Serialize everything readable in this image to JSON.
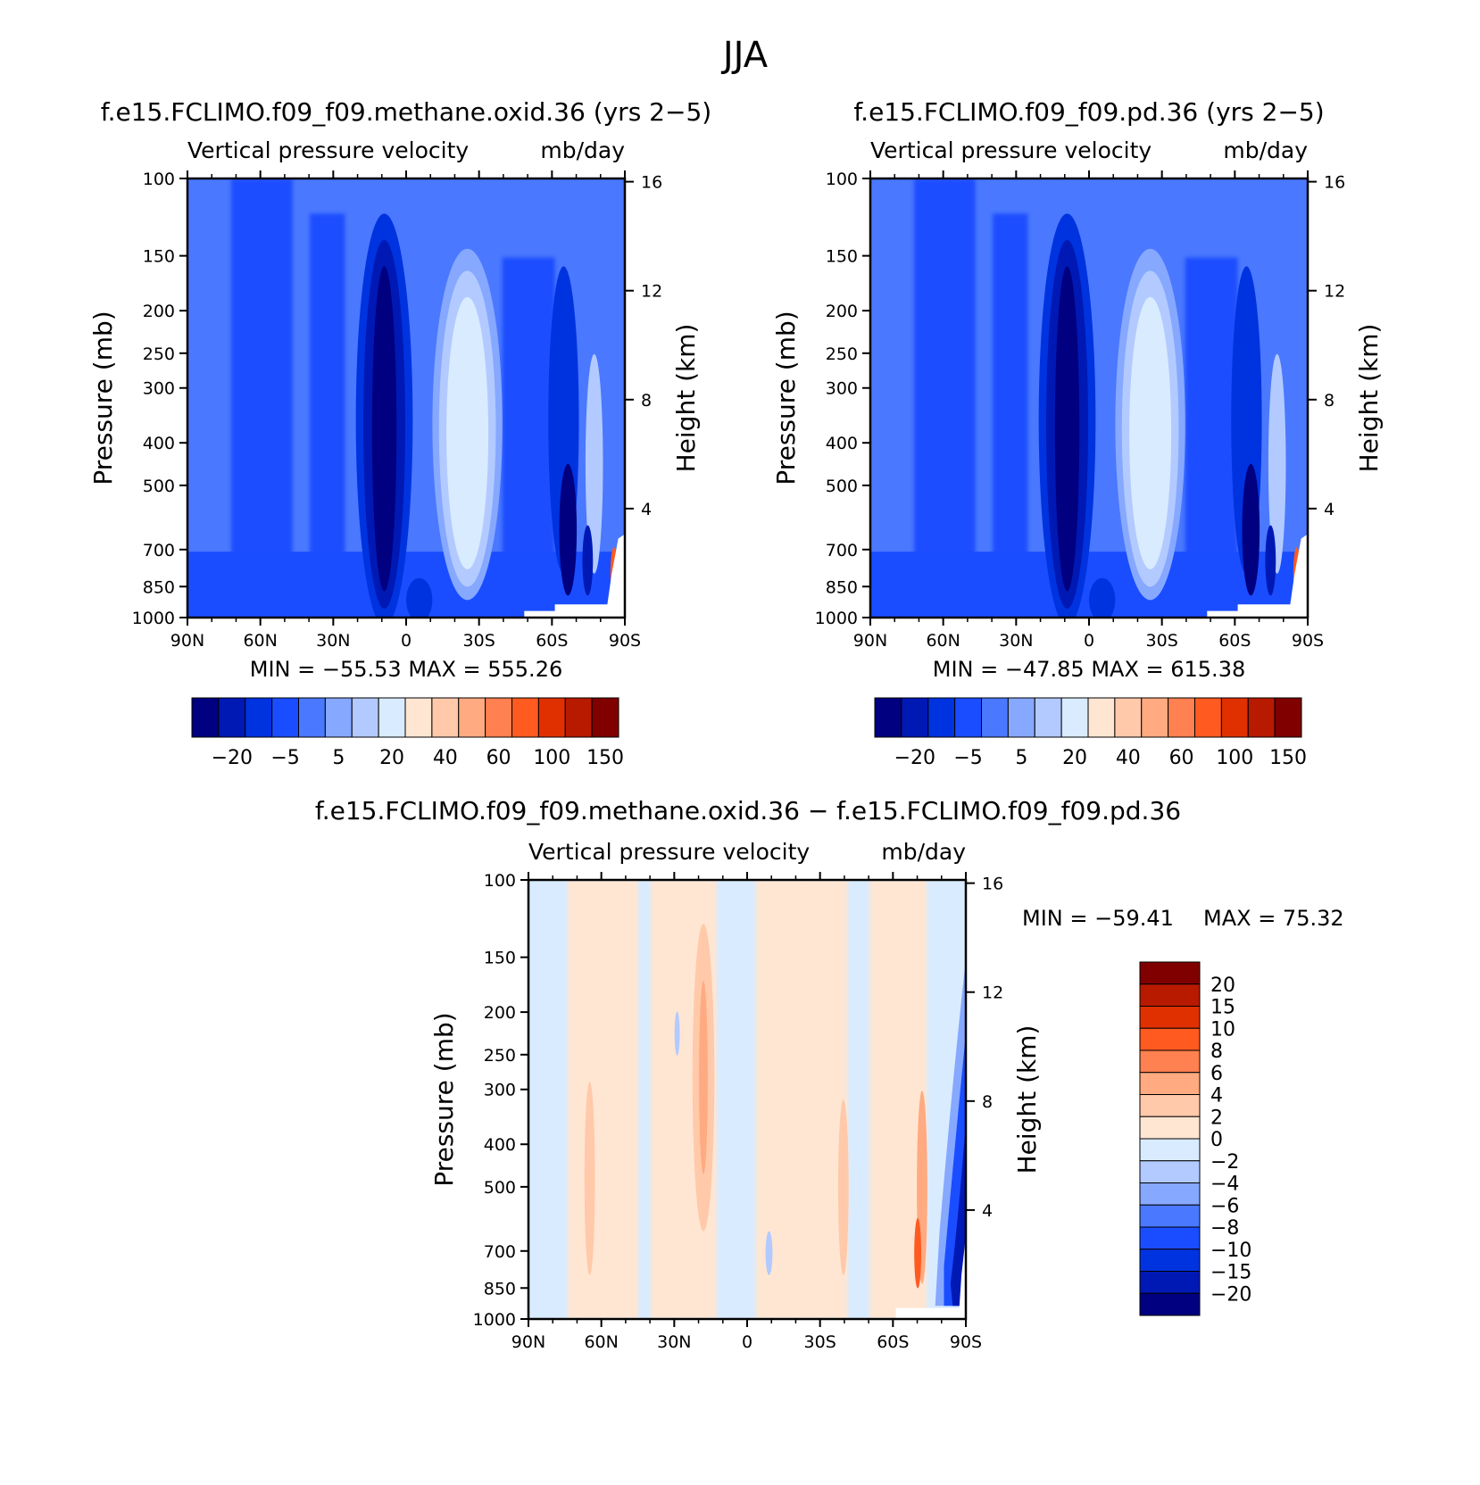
{
  "page_title": "JJA",
  "chart_data": [
    {
      "id": "panel-methane",
      "type": "heatmap",
      "title": "f.e15.FCLIMO.f09_f09.methane.oxid.36 (yrs 2−5)",
      "subtitle_left": "Vertical pressure velocity",
      "subtitle_right": "mb/day",
      "ylabel": "Pressure (mb)",
      "ylabel_right": "Height (km)",
      "x_ticks": [
        "90N",
        "60N",
        "30N",
        "0",
        "30S",
        "60S",
        "90S"
      ],
      "y_ticks": [
        100,
        150,
        200,
        250,
        300,
        400,
        500,
        700,
        850,
        1000
      ],
      "height_ticks": [
        4,
        8,
        12,
        16
      ],
      "min_label": "MIN = −55.53",
      "max_label": "MAX = 555.26",
      "min": -55.53,
      "max": 555.26,
      "levels": [
        -20,
        -5,
        5,
        20,
        40,
        60,
        100,
        150
      ],
      "colorbar_colors": [
        "#000080",
        "#0019b4",
        "#0033e0",
        "#1a4dff",
        "#4a78ff",
        "#86a8ff",
        "#b2caff",
        "#d9ebff",
        "#ffe6d2",
        "#ffc9aa",
        "#ffaa80",
        "#ff8050",
        "#ff5a20",
        "#e03000",
        "#b81a00",
        "#800000"
      ],
      "colorbar_labels": [
        "−20",
        "−5",
        "5",
        "20",
        "40",
        "60",
        "100",
        "150"
      ]
    },
    {
      "id": "panel-pd",
      "type": "heatmap",
      "title": "f.e15.FCLIMO.f09_f09.pd.36 (yrs 2−5)",
      "subtitle_left": "Vertical pressure velocity",
      "subtitle_right": "mb/day",
      "ylabel": "Pressure (mb)",
      "ylabel_right": "Height (km)",
      "x_ticks": [
        "90N",
        "60N",
        "30N",
        "0",
        "30S",
        "60S",
        "90S"
      ],
      "y_ticks": [
        100,
        150,
        200,
        250,
        300,
        400,
        500,
        700,
        850,
        1000
      ],
      "height_ticks": [
        4,
        8,
        12,
        16
      ],
      "min_label": "MIN = −47.85",
      "max_label": "MAX = 615.38",
      "min": -47.85,
      "max": 615.38,
      "levels": [
        -20,
        -5,
        5,
        20,
        40,
        60,
        100,
        150
      ],
      "colorbar_colors": [
        "#000080",
        "#0019b4",
        "#0033e0",
        "#1a4dff",
        "#4a78ff",
        "#86a8ff",
        "#b2caff",
        "#d9ebff",
        "#ffe6d2",
        "#ffc9aa",
        "#ffaa80",
        "#ff8050",
        "#ff5a20",
        "#e03000",
        "#b81a00",
        "#800000"
      ],
      "colorbar_labels": [
        "−20",
        "−5",
        "5",
        "20",
        "40",
        "60",
        "100",
        "150"
      ]
    },
    {
      "id": "panel-diff",
      "type": "heatmap",
      "title": "f.e15.FCLIMO.f09_f09.methane.oxid.36 − f.e15.FCLIMO.f09_f09.pd.36",
      "subtitle_left": "Vertical pressure velocity",
      "subtitle_right": "mb/day",
      "ylabel": "Pressure (mb)",
      "ylabel_right": "Height (km)",
      "x_ticks": [
        "90N",
        "60N",
        "30N",
        "0",
        "30S",
        "60S",
        "90S"
      ],
      "y_ticks": [
        100,
        150,
        200,
        250,
        300,
        400,
        500,
        700,
        850,
        1000
      ],
      "height_ticks": [
        4,
        8,
        12,
        16
      ],
      "min_label": "MIN = −59.41",
      "max_label": "MAX =  75.32",
      "min": -59.41,
      "max": 75.32,
      "levels": [
        20,
        15,
        10,
        8,
        6,
        4,
        2,
        0,
        -2,
        -4,
        -6,
        -8,
        -10,
        -15,
        -20
      ],
      "colorbar_colors": [
        "#800000",
        "#b81a00",
        "#e03000",
        "#ff5a20",
        "#ff8050",
        "#ffaa80",
        "#ffc9aa",
        "#ffe6d2",
        "#d9ebff",
        "#b2caff",
        "#86a8ff",
        "#4a78ff",
        "#1a4dff",
        "#0033e0",
        "#0019b4",
        "#000080"
      ],
      "colorbar_labels": [
        "20",
        "15",
        "10",
        "8",
        "6",
        "4",
        "2",
        "0",
        "−2",
        "−4",
        "−6",
        "−8",
        "−10",
        "−15",
        "−20"
      ]
    }
  ]
}
